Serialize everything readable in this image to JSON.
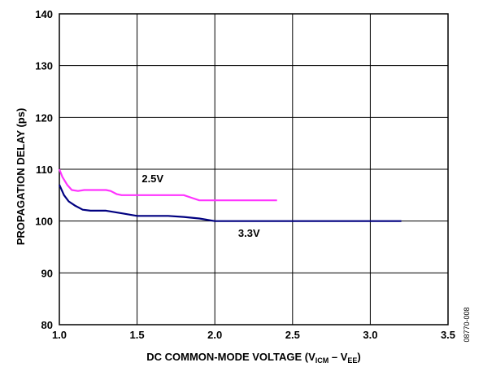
{
  "chart_data": {
    "type": "line",
    "xlabel_parts": {
      "prefix": "DC COMMON-MODE VOLTAGE (V",
      "sub1": "ICM",
      "middle": " – V",
      "sub2": "EE",
      "suffix": ")"
    },
    "ylabel": "PROPAGATION DELAY (ps)",
    "xlim": [
      1.0,
      3.5
    ],
    "ylim": [
      80,
      140
    ],
    "x_ticks": [
      "1.0",
      "1.5",
      "2.0",
      "2.5",
      "3.0",
      "3.5"
    ],
    "y_ticks": [
      "80",
      "90",
      "100",
      "110",
      "120",
      "130",
      "140"
    ],
    "grid": true,
    "series": [
      {
        "name": "2.5V",
        "color": "#ff33ff",
        "x": [
          1.0,
          1.02,
          1.05,
          1.08,
          1.12,
          1.16,
          1.2,
          1.25,
          1.3,
          1.33,
          1.37,
          1.4,
          1.5,
          1.6,
          1.7,
          1.8,
          1.85,
          1.9,
          2.0,
          2.1,
          2.2,
          2.3,
          2.4
        ],
        "y": [
          110,
          108.5,
          107,
          106,
          105.8,
          106,
          106,
          106,
          106,
          105.8,
          105.2,
          105,
          105,
          105,
          105,
          105,
          104.5,
          104,
          104,
          104,
          104,
          104,
          104
        ]
      },
      {
        "name": "3.3V",
        "color": "#000080",
        "x": [
          1.0,
          1.03,
          1.06,
          1.1,
          1.15,
          1.2,
          1.3,
          1.4,
          1.5,
          1.6,
          1.7,
          1.8,
          1.9,
          2.0,
          2.2,
          2.5,
          2.8,
          3.0,
          3.2
        ],
        "y": [
          107,
          105,
          103.8,
          103,
          102.2,
          102,
          102,
          101.5,
          101,
          101,
          101,
          100.8,
          100.5,
          100,
          100,
          100,
          100,
          100,
          100
        ]
      }
    ],
    "series_labels": [
      {
        "text": "2.5V",
        "x": 1.6,
        "y": 107.5
      },
      {
        "text": "3.3V",
        "x": 2.22,
        "y": 97
      }
    ]
  },
  "figure_id": "08770-008"
}
